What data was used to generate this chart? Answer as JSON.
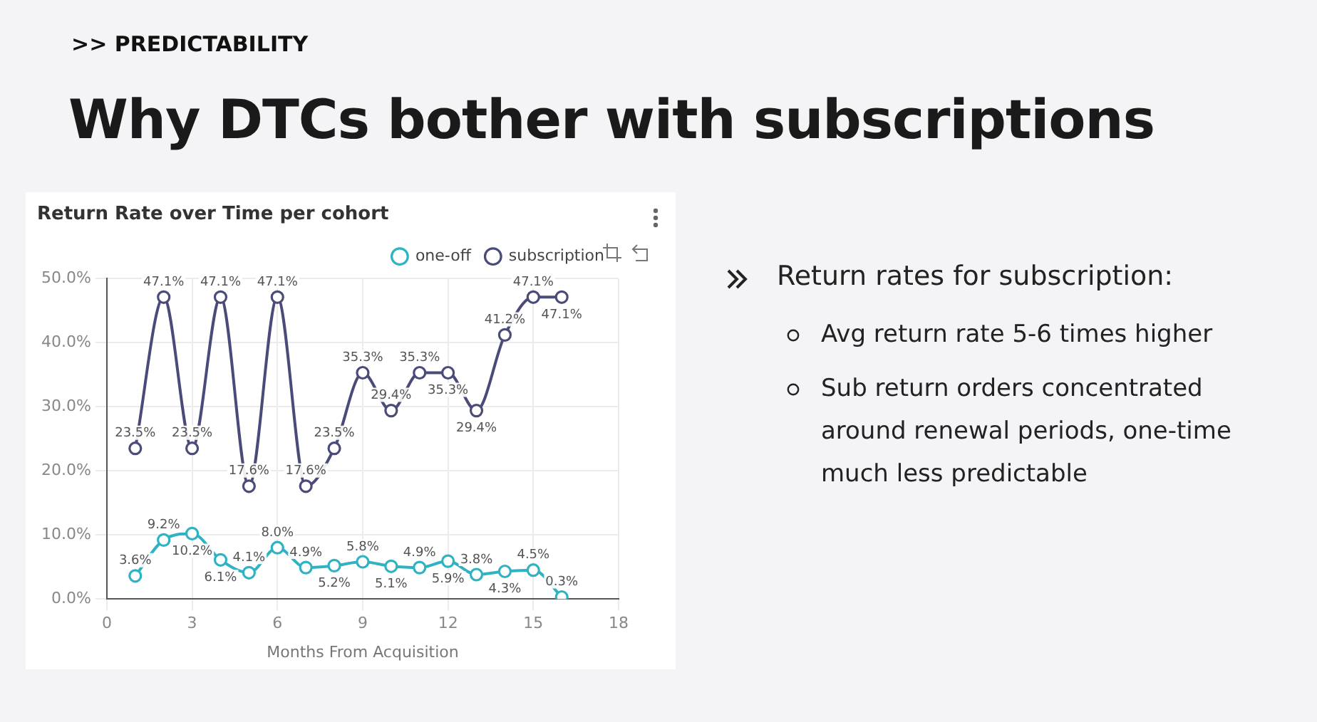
{
  "chart_data": {
    "type": "line",
    "title": "Return Rate over Time per cohort",
    "xlabel": "Months From Acquisition",
    "x": [
      1,
      2,
      3,
      4,
      5,
      6,
      7,
      8,
      9,
      10,
      11,
      12,
      13,
      14,
      15,
      16
    ],
    "series": [
      {
        "name": "one-off",
        "color": "#2fb2c2",
        "values": [
          3.6,
          9.2,
          10.2,
          6.1,
          4.1,
          8.0,
          4.9,
          5.2,
          5.8,
          5.1,
          4.9,
          5.9,
          3.8,
          4.3,
          4.5,
          0.3
        ],
        "value_labels": [
          "3.6%",
          "9.2%",
          "10.2%",
          "6.1%",
          "4.1%",
          "8.0%",
          "4.9%",
          "5.2%",
          "5.8%",
          "5.1%",
          "4.9%",
          "5.9%",
          "3.8%",
          "4.3%",
          "4.5%",
          "0.3%"
        ]
      },
      {
        "name": "subscription",
        "color": "#4a4b78",
        "values": [
          23.5,
          47.1,
          23.5,
          47.1,
          17.6,
          47.1,
          17.6,
          23.5,
          35.3,
          29.4,
          35.3,
          35.3,
          29.4,
          41.2,
          47.1,
          47.1
        ],
        "value_labels": [
          "23.5%",
          "47.1%",
          "23.5%",
          "47.1%",
          "17.6%",
          "47.1%",
          "17.6%",
          "23.5%",
          "35.3%",
          "29.4%",
          "35.3%",
          "35.3%",
          "29.4%",
          "41.2%",
          "47.1%",
          "47.1%"
        ]
      }
    ],
    "xlim": [
      0,
      18
    ],
    "xticks": [
      0,
      3,
      6,
      9,
      12,
      15,
      18
    ],
    "ylim": [
      0,
      50
    ],
    "yticks": [
      {
        "value": 0,
        "label": "0.0%"
      },
      {
        "value": 10,
        "label": "10.0%"
      },
      {
        "value": 20,
        "label": "20.0%"
      },
      {
        "value": 30,
        "label": "30.0%"
      },
      {
        "value": 40,
        "label": "40.0%"
      },
      {
        "value": 50,
        "label": "50.0%"
      }
    ],
    "grid": true,
    "legend": "top right",
    "marker": "circle",
    "line_style": "solid",
    "annotations": [
      ">> PREDICTABILITY",
      "Why DTCs bother with subscriptions",
      "Return rates for subscription:",
      "Avg return rate 5-6 times higher",
      "Sub return orders concentrated around renewal periods, one-time much less predictable"
    ]
  }
}
